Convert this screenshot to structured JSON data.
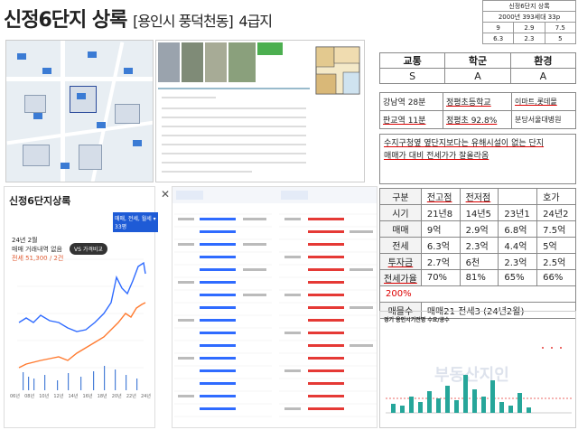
{
  "header": {
    "name": "신정6단지 상록",
    "location": "[용인시 풍덕천동]",
    "grade": "4급지"
  },
  "info_box": {
    "title": "신정6단지 상록",
    "subtitle": "2000년 393세대 33p",
    "row1": [
      "9",
      "2.9",
      "7.5"
    ],
    "row2": [
      "6.3",
      "2.3",
      "5"
    ]
  },
  "rating": {
    "headers": [
      "교통",
      "학군",
      "환경"
    ],
    "values": [
      "S",
      "A",
      "A"
    ]
  },
  "poi": {
    "row1": [
      "강남역 28분",
      "정평초등학교",
      "이마트,롯데몰"
    ],
    "row2": [
      "판교역 11분",
      "정평초 92.8%",
      "분당서울대병원"
    ]
  },
  "memo": {
    "line1": "수지구청옆 옆단지보다는 유해시설이 없는 단지",
    "line2": "매매가 대비 전세가가 잘올라옴"
  },
  "chart_screen": {
    "title": "신정6단지상록",
    "close": "✕",
    "month": "24년 2월",
    "line1": "매매 거래내역 없음",
    "line2": "전세 51,300 / 2건",
    "filter": "매매, 전세, 월세 ▾",
    "size": "33평",
    "compare": "VS 가격비교",
    "x_labels": [
      "06년",
      "08년",
      "10년",
      "12년",
      "14년",
      "16년",
      "18년",
      "20년",
      "22년",
      "24년"
    ]
  },
  "price_table": {
    "headers": [
      "구분",
      "전고점",
      "전저점",
      "",
      "호가"
    ],
    "rows": [
      {
        "label": "시기",
        "cells": [
          "21년8",
          "14년5",
          "23년1",
          "24년2"
        ]
      },
      {
        "label": "매매",
        "cells": [
          "9억",
          "2.9억",
          "6.8억",
          "7.5억"
        ]
      },
      {
        "label": "전세",
        "cells": [
          "6.3억",
          "2.3억",
          "4.4억",
          "5억"
        ]
      },
      {
        "label": "투자금",
        "cells": [
          "2.7억",
          "6천",
          "2.3억",
          "2.5억"
        ]
      },
      {
        "label": "전세가율",
        "cells": [
          "70%",
          "81%",
          "65%",
          "66%"
        ]
      }
    ],
    "extra": "200%",
    "volume_label": "매물수",
    "volume_value": "매매21 전세3 (24년2월)"
  },
  "bar_chart": {
    "title": "경기 용인시기전명 수요/공수",
    "watermark": "부동산지인"
  },
  "colors": {
    "accent": "#1e5bd6",
    "sale": "#2f6bff",
    "rent": "#ff7a2f",
    "red": "#dd0000"
  }
}
